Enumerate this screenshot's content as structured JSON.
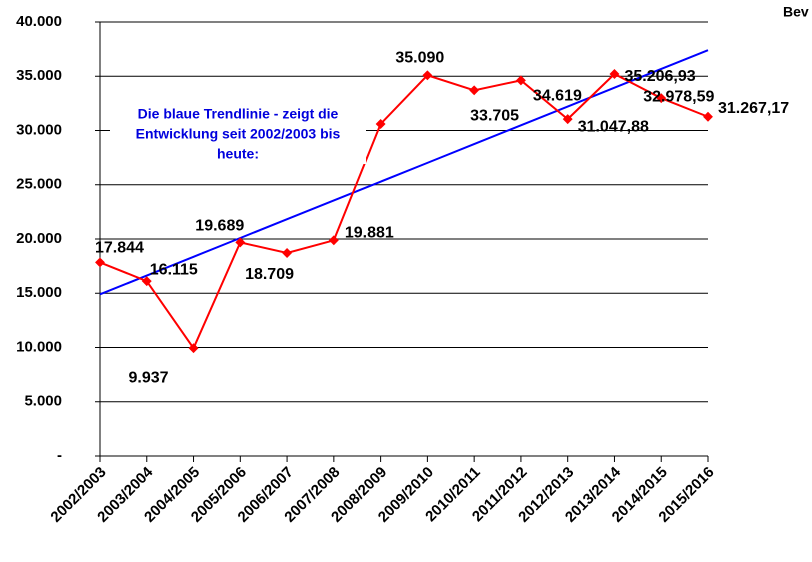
{
  "chart_data": {
    "type": "line",
    "categories": [
      "2002/2003",
      "2003/2004",
      "2004/2005",
      "2005/2006",
      "2006/2007",
      "2007/2008",
      "2008/2009",
      "2009/2010",
      "2010/2011",
      "2011/2012",
      "2012/2013",
      "2013/2014",
      "2014/2015",
      "2015/2016"
    ],
    "series": [
      {
        "color": "#ff0000",
        "values": [
          17844,
          16115,
          9937,
          19689,
          18709,
          19881,
          30600,
          35090,
          33705,
          34619,
          31047.88,
          35206.93,
          32978.59,
          31267.17
        ],
        "value_labels": [
          "17.844",
          "16.115",
          "9.937",
          "19.689",
          "18.709",
          "19.881",
          null,
          "35.090",
          "33.705",
          "34.619",
          "31.047,88",
          "35.206,93",
          "32.978,59",
          "31.267,17"
        ]
      },
      {
        "color": "#0000ff",
        "values": [
          14900,
          16631,
          18362,
          20093,
          21824,
          23555,
          25286,
          27017,
          28748,
          30479,
          32210,
          33941,
          35672,
          37403
        ]
      }
    ],
    "ylim": [
      0,
      40000
    ],
    "yticks": [
      {
        "value": 0,
        "label": "-"
      },
      {
        "value": 5000,
        "label": "5.000"
      },
      {
        "value": 10000,
        "label": "10.000"
      },
      {
        "value": 15000,
        "label": "15.000"
      },
      {
        "value": 20000,
        "label": "20.000"
      },
      {
        "value": 25000,
        "label": "25.000"
      },
      {
        "value": 30000,
        "label": "30.000"
      },
      {
        "value": 35000,
        "label": "35.000"
      },
      {
        "value": 40000,
        "label": "40.000"
      }
    ],
    "grid": true,
    "annotation": [
      "Die blaue Trendlinie - zeigt die",
      "Entwicklung seit 2002/2003 bis",
      "heute:"
    ],
    "corner_text": "Bev"
  }
}
